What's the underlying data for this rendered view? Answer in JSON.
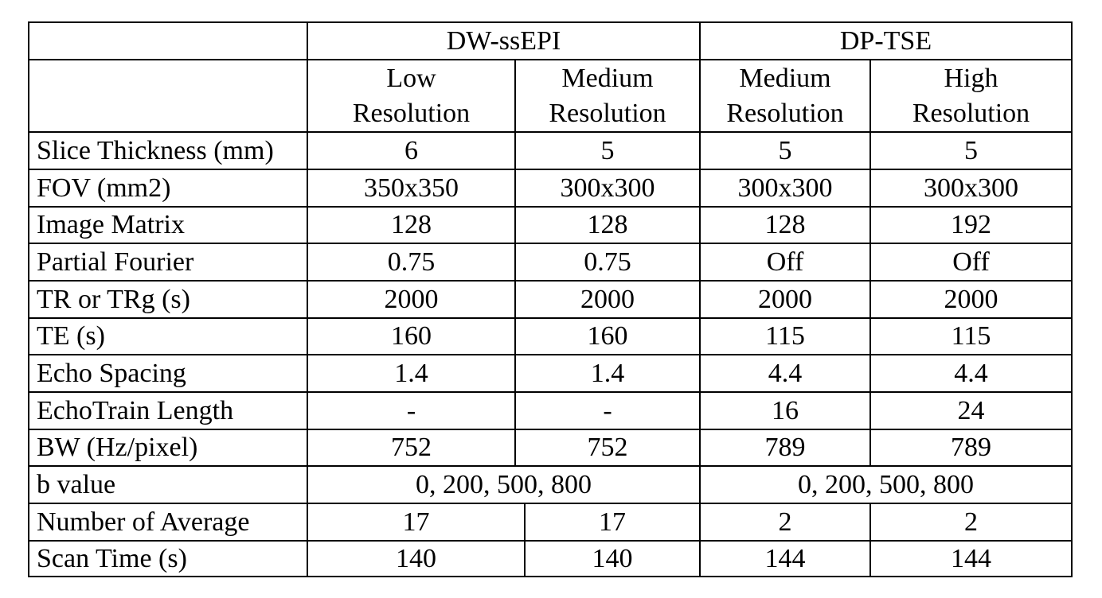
{
  "table": {
    "groups": [
      "DW-ssEPI",
      "DP-TSE"
    ],
    "subheaders": [
      [
        "Low",
        "Resolution"
      ],
      [
        "Medium",
        "Resolution"
      ],
      [
        "Medium",
        "Resolution"
      ],
      [
        "High",
        "Resolution"
      ]
    ],
    "rows": [
      {
        "label": "Slice Thickness (mm)",
        "values": [
          "6",
          "5",
          "5",
          "5"
        ]
      },
      {
        "label": "FOV (mm2)",
        "values": [
          "350x350",
          "300x300",
          "300x300",
          "300x300"
        ]
      },
      {
        "label": "Image Matrix",
        "values": [
          "128",
          "128",
          "128",
          "192"
        ]
      },
      {
        "label": "Partial Fourier",
        "values": [
          "0.75",
          "0.75",
          "Off",
          "Off"
        ]
      },
      {
        "label": "TR or TRg (s)",
        "values": [
          "2000",
          "2000",
          "2000",
          "2000"
        ]
      },
      {
        "label": "TE (s)",
        "values": [
          "160",
          "160",
          "115",
          "115"
        ]
      },
      {
        "label": "Echo Spacing",
        "values": [
          "1.4",
          "1.4",
          "4.4",
          "4.4"
        ]
      },
      {
        "label": "EchoTrain Length",
        "values": [
          "-",
          "-",
          "16",
          "24"
        ]
      },
      {
        "label": "BW (Hz/pixel)",
        "values": [
          "752",
          "752",
          "789",
          "789"
        ]
      },
      {
        "label": "b value",
        "values": [
          "0, 200, 500, 800",
          "0, 200, 500, 800"
        ]
      },
      {
        "label": "Number of Average",
        "values": [
          "17",
          "17",
          "2",
          "2"
        ]
      },
      {
        "label": "Scan Time (s)",
        "values": [
          "140",
          "140",
          "144",
          "144"
        ]
      }
    ]
  }
}
